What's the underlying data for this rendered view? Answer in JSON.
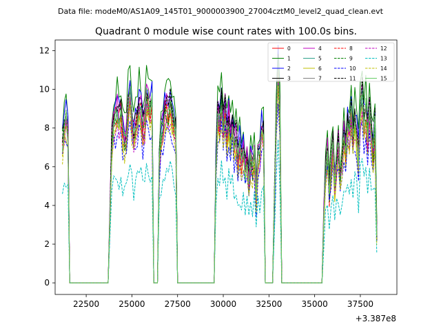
{
  "chart_data": {
    "type": "line",
    "suptitle": "Data file: modeM0/AS1A09_145T01_9000003900_27004cztM0_level2_quad_clean.evt",
    "title": "Quadrant 0 module wise count rates with 100.0s bins.",
    "xlabel": "",
    "ylabel": "",
    "offset_label": "+3.387e8",
    "xlim": [
      20800,
      39500
    ],
    "ylim": [
      -0.6,
      12.55
    ],
    "xticks": [
      22500,
      25000,
      27500,
      30000,
      32500,
      35000,
      37500
    ],
    "xtick_labels": [
      "22500",
      "25000",
      "27500",
      "30000",
      "32500",
      "35000",
      "37500"
    ],
    "yticks": [
      0,
      2,
      4,
      6,
      8,
      10,
      12
    ],
    "ytick_labels": [
      "0",
      "2",
      "4",
      "6",
      "8",
      "10",
      "12"
    ],
    "grid": false,
    "legend_placement": "top-right",
    "legend_columns": 4,
    "bin_seconds": 100,
    "x_start": 21200,
    "x_end": 38400,
    "segments": [
      {
        "start": 21200,
        "end": 21500,
        "profile": [
          7.2,
          8.2,
          8.5,
          7.9
        ]
      },
      {
        "start": 23800,
        "end": 26100,
        "profile": [
          3.6,
          7.2,
          8.3,
          8.6,
          8.9,
          8.5,
          8.8,
          7.9,
          7.3,
          7.6,
          9.2,
          9.8,
          8.4,
          7.6,
          8.2,
          8.6,
          9.3,
          8.8,
          7.9,
          8.3,
          9.5,
          9.4,
          9.1,
          9.3
        ]
      },
      {
        "start": 26500,
        "end": 27400,
        "profile": [
          6.3,
          7.9,
          8.2,
          8.9,
          9.2,
          8.8,
          9.3,
          8.7,
          8.2,
          7.9
        ]
      },
      {
        "start": 29600,
        "end": 31900,
        "profile": [
          5.9,
          8.9,
          8.2,
          9.3,
          8.0,
          8.9,
          7.6,
          8.6,
          7.3,
          8.3,
          7.1,
          7.7,
          6.4,
          7.2,
          6.3,
          6.9,
          5.8,
          6.3,
          5.1,
          6.4,
          5.9,
          6.6,
          4.6,
          6.4
        ]
      },
      {
        "start": 32000,
        "end": 32200,
        "profile": [
          6.6,
          8.1,
          7.6
        ]
      },
      {
        "start": 32800,
        "end": 33100,
        "profile": [
          4.4,
          8.4,
          11.1,
          8.5
        ]
      },
      {
        "start": 35500,
        "end": 38400,
        "profile": [
          3.6,
          5.9,
          6.8,
          4.7,
          6.1,
          7.3,
          5.1,
          6.3,
          7.2,
          5.4,
          6.6,
          7.6,
          6.8,
          8.3,
          7.8,
          8.8,
          7.2,
          8.5,
          7.7,
          6.6,
          8.9,
          9.8,
          8.3,
          9.0,
          7.6,
          8.8,
          7.9,
          6.9,
          8.1,
          2.6
        ]
      }
    ],
    "series": [
      {
        "name": "0",
        "color": "#ff0000",
        "dash": "solid",
        "scale": 1.0,
        "seed": 3
      },
      {
        "name": "1",
        "color": "#008000",
        "dash": "solid",
        "scale": 1.14,
        "seed": 7
      },
      {
        "name": "2",
        "color": "#0000ff",
        "dash": "solid",
        "scale": 1.06,
        "seed": 11
      },
      {
        "name": "3",
        "color": "#000000",
        "dash": "solid",
        "scale": 1.03,
        "seed": 13
      },
      {
        "name": "4",
        "color": "#bf00bf",
        "dash": "solid",
        "scale": 1.04,
        "seed": 17
      },
      {
        "name": "5",
        "color": "#2ca089",
        "dash": "solid",
        "scale": 0.98,
        "seed": 19
      },
      {
        "name": "6",
        "color": "#bfbf00",
        "dash": "solid",
        "scale": 0.92,
        "seed": 23
      },
      {
        "name": "7",
        "color": "#808080",
        "dash": "solid",
        "scale": 0.96,
        "seed": 29
      },
      {
        "name": "8",
        "color": "#ff0000",
        "dash": "dashed",
        "scale": 0.95,
        "seed": 31
      },
      {
        "name": "9",
        "color": "#008000",
        "dash": "dashed",
        "scale": 0.97,
        "seed": 37
      },
      {
        "name": "10",
        "color": "#0000ff",
        "dash": "dashed",
        "scale": 0.86,
        "seed": 41
      },
      {
        "name": "11",
        "color": "#000000",
        "dash": "dashed",
        "scale": 1.05,
        "seed": 43
      },
      {
        "name": "12",
        "color": "#bf00bf",
        "dash": "dashed",
        "scale": 0.93,
        "seed": 47
      },
      {
        "name": "13",
        "color": "#00bfbf",
        "dash": "dashed",
        "scale": 0.63,
        "seed": 53
      },
      {
        "name": "14",
        "color": "#bfbf00",
        "dash": "dashed",
        "scale": 0.9,
        "seed": 59
      },
      {
        "name": "15",
        "color": "#66cc66",
        "dash": "solid",
        "scale": 1.0,
        "seed": 61
      }
    ]
  }
}
